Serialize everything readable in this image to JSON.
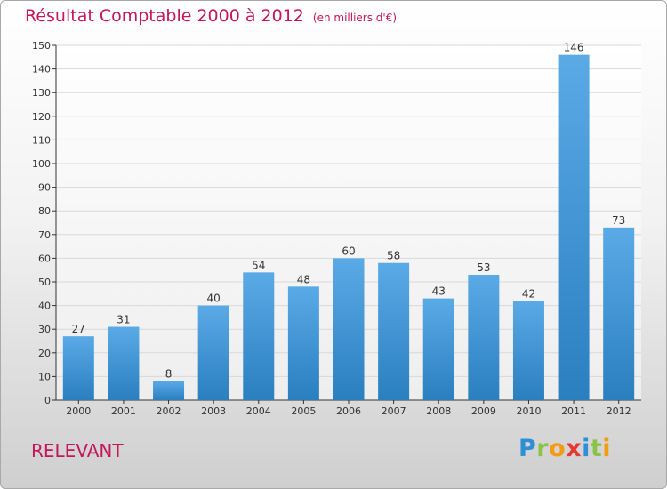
{
  "chart_data": {
    "type": "bar",
    "title": "Résultat Comptable 2000 à 2012",
    "subtitle": "(en milliers d'€)",
    "categories": [
      "2000",
      "2001",
      "2002",
      "2003",
      "2004",
      "2005",
      "2006",
      "2007",
      "2008",
      "2009",
      "2010",
      "2011",
      "2012"
    ],
    "values": [
      27,
      31,
      8,
      40,
      54,
      48,
      60,
      58,
      43,
      53,
      42,
      146,
      73
    ],
    "ylim": [
      0,
      150
    ],
    "yticks": [
      0,
      10,
      20,
      30,
      40,
      50,
      60,
      70,
      80,
      90,
      100,
      110,
      120,
      130,
      140,
      150
    ],
    "grid": true,
    "legend": "none",
    "bar_color_top": "#5aaae6",
    "bar_color_bottom": "#2a7fbf"
  },
  "footer": {
    "commune": "RELEVANT",
    "logo_text": "Proxiti",
    "logo_letters": [
      {
        "ch": "P",
        "color": "#2f8fd5"
      },
      {
        "ch": "r",
        "color": "#8bc34a"
      },
      {
        "ch": "o",
        "color": "#f39c12"
      },
      {
        "ch": "x",
        "color": "#e53935"
      },
      {
        "ch": "i",
        "color": "#2f8fd5"
      },
      {
        "ch": "t",
        "color": "#8bc34a"
      },
      {
        "ch": "i",
        "color": "#f39c12"
      }
    ]
  },
  "colors": {
    "title": "#c2185b",
    "axis": "#333333",
    "grid": "#d8d8d8"
  }
}
